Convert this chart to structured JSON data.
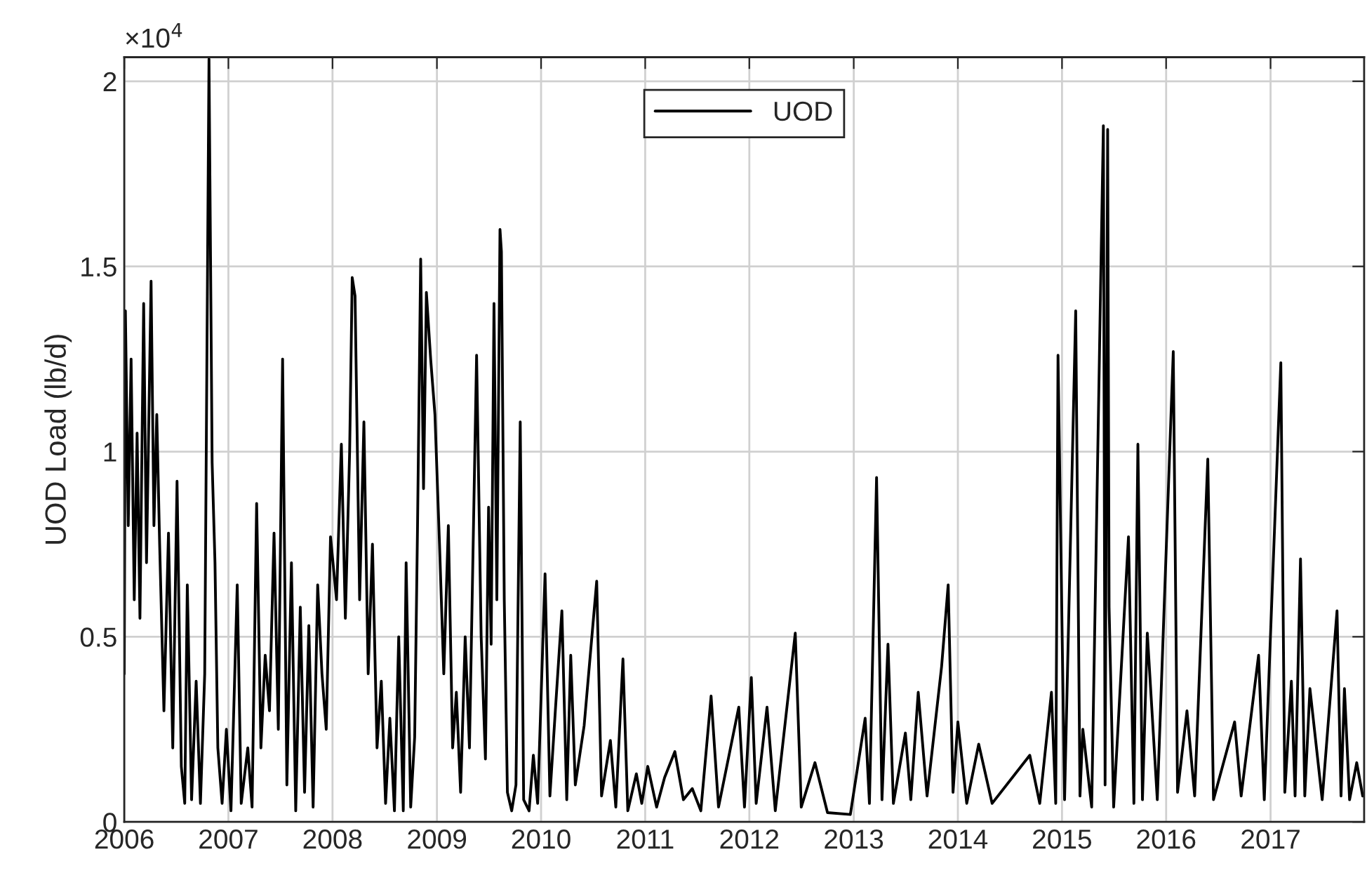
{
  "chart_data": {
    "type": "line",
    "ylabel": "UOD Load (lb/d)",
    "annotations": [
      "×10$^{4}$"
    ],
    "x": [
      "2006-01-01",
      "2006-01-05",
      "2006-01-15",
      "2006-01-25",
      "2006-02-05",
      "2006-02-15",
      "2006-02-25",
      "2006-03-10",
      "2006-03-20",
      "2006-04-05",
      "2006-04-15",
      "2006-04-25",
      "2006-05-05",
      "2006-05-20",
      "2006-06-05",
      "2006-06-20",
      "2006-07-05",
      "2006-07-20",
      "2006-08-01",
      "2006-08-10",
      "2006-08-25",
      "2006-09-10",
      "2006-09-25",
      "2006-10-10",
      "2006-10-25",
      "2006-11-05",
      "2006-11-15",
      "2006-11-25",
      "2006-12-10",
      "2006-12-25",
      "2007-01-10",
      "2007-02-01",
      "2007-02-15",
      "2007-03-10",
      "2007-03-25",
      "2007-04-10",
      "2007-04-25",
      "2007-05-10",
      "2007-05-25",
      "2007-06-10",
      "2007-06-25",
      "2007-07-10",
      "2007-07-25",
      "2007-08-10",
      "2007-08-25",
      "2007-09-10",
      "2007-09-25",
      "2007-10-10",
      "2007-10-25",
      "2007-11-10",
      "2007-11-25",
      "2007-12-10",
      "2007-12-25",
      "2008-01-15",
      "2008-02-01",
      "2008-02-15",
      "2008-03-01",
      "2008-03-10",
      "2008-03-20",
      "2008-04-05",
      "2008-04-20",
      "2008-05-05",
      "2008-05-20",
      "2008-06-05",
      "2008-06-20",
      "2008-07-05",
      "2008-07-20",
      "2008-08-05",
      "2008-08-20",
      "2008-09-05",
      "2008-09-15",
      "2008-10-01",
      "2008-10-15",
      "2008-10-25",
      "2008-11-05",
      "2008-11-15",
      "2008-11-25",
      "2008-12-10",
      "2008-12-25",
      "2009-01-10",
      "2009-01-25",
      "2009-02-10",
      "2009-02-25",
      "2009-03-10",
      "2009-03-25",
      "2009-04-10",
      "2009-04-25",
      "2009-05-20",
      "2009-06-05",
      "2009-06-20",
      "2009-07-01",
      "2009-07-10",
      "2009-07-20",
      "2009-07-30",
      "2009-08-10",
      "2009-08-15",
      "2009-08-25",
      "2009-09-05",
      "2009-09-20",
      "2009-10-05",
      "2009-10-20",
      "2009-11-01",
      "2009-11-20",
      "2009-12-05",
      "2009-12-20",
      "2010-01-15",
      "2010-02-01",
      "2010-02-20",
      "2010-03-15",
      "2010-04-01",
      "2010-04-15",
      "2010-05-01",
      "2010-06-01",
      "2010-07-15",
      "2010-08-01",
      "2010-09-01",
      "2010-09-20",
      "2010-10-15",
      "2010-11-01",
      "2010-12-01",
      "2010-12-20",
      "2011-01-10",
      "2011-02-10",
      "2011-03-10",
      "2011-04-15",
      "2011-05-15",
      "2011-06-15",
      "2011-07-15",
      "2011-08-20",
      "2011-09-15",
      "2011-11-25",
      "2011-12-15",
      "2012-01-08",
      "2012-01-25",
      "2012-03-03",
      "2012-04-01",
      "2012-06-10",
      "2012-07-01",
      "2012-08-18",
      "2012-10-01",
      "2012-12-20",
      "2013-02-10",
      "2013-02-25",
      "2013-03-22",
      "2013-04-10",
      "2013-05-01",
      "2013-05-20",
      "2013-07-01",
      "2013-07-20",
      "2013-08-15",
      "2013-09-15",
      "2013-11-05",
      "2013-11-28",
      "2013-12-15",
      "2014-01-01",
      "2014-02-01",
      "2014-03-15",
      "2014-05-01",
      "2014-09-10",
      "2014-10-15",
      "2014-11-25",
      "2014-12-10",
      "2014-12-18",
      "2015-01-10",
      "2015-02-18",
      "2015-03-05",
      "2015-03-15",
      "2015-04-15",
      "2015-05-26",
      "2015-06-01",
      "2015-06-10",
      "2015-06-15",
      "2015-07-01",
      "2015-08-22",
      "2015-09-10",
      "2015-09-24",
      "2015-10-10",
      "2015-10-27",
      "2015-12-01",
      "2016-01-26",
      "2016-02-10",
      "2016-03-14",
      "2016-04-10",
      "2016-05-26",
      "2016-06-15",
      "2016-08-28",
      "2016-09-20",
      "2016-11-20",
      "2016-12-10",
      "2017-02-06",
      "2017-02-20",
      "2017-03-15",
      "2017-03-28",
      "2017-04-16",
      "2017-05-01",
      "2017-05-19",
      "2017-07-01",
      "2017-08-22",
      "2017-09-05",
      "2017-09-17",
      "2017-10-05",
      "2017-10-30",
      "2017-11-20"
    ],
    "series": [
      {
        "name": "UOD",
        "color": "#000000",
        "values": [
          0.4,
          1.38,
          0.8,
          1.25,
          0.6,
          1.05,
          0.55,
          1.4,
          0.7,
          1.46,
          0.8,
          1.1,
          0.75,
          0.3,
          0.78,
          0.2,
          0.92,
          0.15,
          0.05,
          0.64,
          0.06,
          0.38,
          0.05,
          0.4,
          2.06,
          0.97,
          0.7,
          0.2,
          0.05,
          0.25,
          0.03,
          0.64,
          0.05,
          0.2,
          0.04,
          0.86,
          0.2,
          0.45,
          0.3,
          0.78,
          0.25,
          1.25,
          0.1,
          0.7,
          0.03,
          0.58,
          0.08,
          0.53,
          0.04,
          0.64,
          0.4,
          0.25,
          0.77,
          0.6,
          1.02,
          0.55,
          1.0,
          1.47,
          1.42,
          0.6,
          1.08,
          0.4,
          0.75,
          0.2,
          0.38,
          0.05,
          0.28,
          0.03,
          0.5,
          0.03,
          0.7,
          0.04,
          0.23,
          0.8,
          1.52,
          0.9,
          1.43,
          1.25,
          1.1,
          0.75,
          0.4,
          0.8,
          0.2,
          0.35,
          0.08,
          0.5,
          0.2,
          1.26,
          0.5,
          0.17,
          0.85,
          0.48,
          1.4,
          0.6,
          1.6,
          1.54,
          0.6,
          0.08,
          0.03,
          0.1,
          1.08,
          0.06,
          0.03,
          0.18,
          0.05,
          0.67,
          0.07,
          0.3,
          0.57,
          0.06,
          0.45,
          0.1,
          0.26,
          0.65,
          0.07,
          0.22,
          0.04,
          0.44,
          0.03,
          0.13,
          0.05,
          0.15,
          0.04,
          0.12,
          0.19,
          0.06,
          0.09,
          0.03,
          0.34,
          0.04,
          0.31,
          0.04,
          0.39,
          0.05,
          0.31,
          0.03,
          0.51,
          0.04,
          0.16,
          0.025,
          0.02,
          0.28,
          0.05,
          0.93,
          0.06,
          0.48,
          0.05,
          0.24,
          0.06,
          0.35,
          0.07,
          0.42,
          0.64,
          0.08,
          0.27,
          0.05,
          0.21,
          0.05,
          0.18,
          0.05,
          0.35,
          0.05,
          1.26,
          0.06,
          1.38,
          0.07,
          0.25,
          0.04,
          1.88,
          0.1,
          1.87,
          0.58,
          0.04,
          0.77,
          0.05,
          1.02,
          0.06,
          0.51,
          0.06,
          1.27,
          0.08,
          0.3,
          0.07,
          0.98,
          0.06,
          0.27,
          0.07,
          0.45,
          0.06,
          1.24,
          0.08,
          0.38,
          0.07,
          0.71,
          0.07,
          0.36,
          0.06,
          0.57,
          0.07,
          0.36,
          0.06,
          0.16,
          0.07
        ]
      }
    ],
    "xlim": [
      "2006-01-01",
      "2017-11-25"
    ],
    "xticks": [
      "2006",
      "2007",
      "2008",
      "2009",
      "2010",
      "2011",
      "2012",
      "2013",
      "2014",
      "2015",
      "2016",
      "2017"
    ],
    "ylim": [
      0,
      2.065
    ],
    "yticks": [
      0,
      0.5,
      1,
      1.5,
      2
    ],
    "grid": true,
    "legend": "top",
    "line_style": "solid",
    "marker": "none"
  }
}
